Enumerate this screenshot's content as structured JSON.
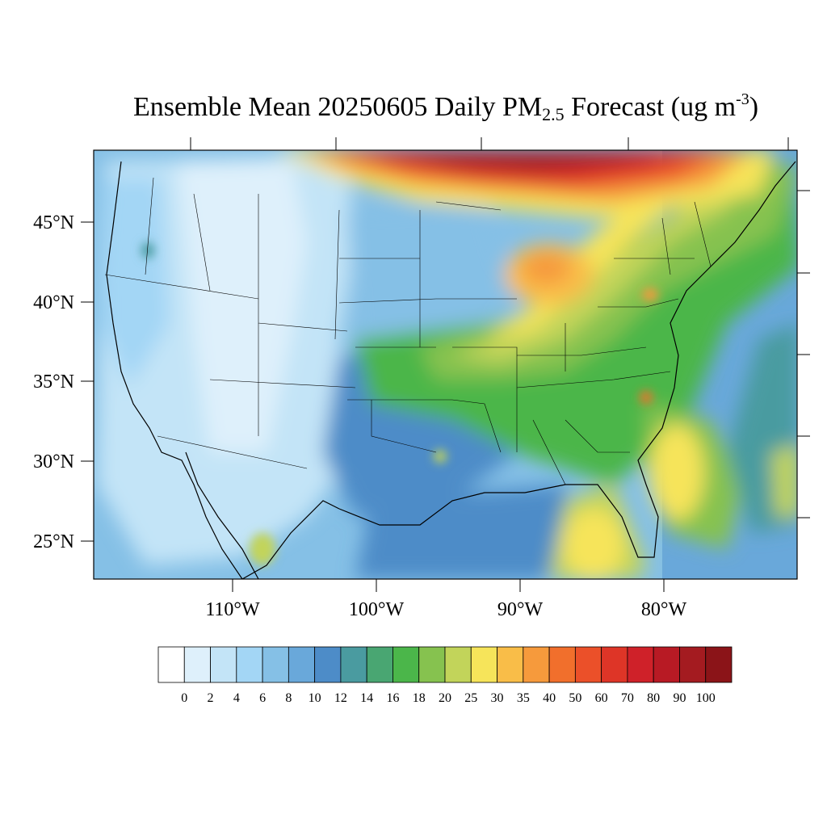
{
  "title": {
    "main": "Ensemble Mean 20250605 Daily PM",
    "sub": "2.5",
    "after": " Forecast (ug m",
    "sup": "-3",
    "close": ")"
  },
  "map": {
    "lat_labels": [
      "45°N",
      "40°N",
      "35°N",
      "30°N",
      "25°N"
    ],
    "lon_labels": [
      "110°W",
      "100°W",
      "90°W",
      "80°W"
    ]
  },
  "colorbar": {
    "levels": [
      "0",
      "2",
      "4",
      "6",
      "8",
      "10",
      "12",
      "14",
      "16",
      "18",
      "20",
      "25",
      "30",
      "35",
      "40",
      "50",
      "60",
      "70",
      "80",
      "90",
      "100"
    ],
    "colors": [
      "#ffffff",
      "#def0fb",
      "#c3e4f7",
      "#a3d6f5",
      "#85c0e6",
      "#69a8da",
      "#4d8cc8",
      "#4a9ba0",
      "#49a672",
      "#4bb64a",
      "#86c24f",
      "#c2d45a",
      "#f6e45a",
      "#f9bd48",
      "#f69a3c",
      "#f16f2c",
      "#eb5029",
      "#de3527",
      "#cf2129",
      "#b81a24",
      "#a41b20",
      "#8b1418"
    ]
  },
  "colors": {
    "ocean": "#6aa9dc",
    "land_west": "#c3e4f7",
    "haze_north": "#a41b20"
  }
}
